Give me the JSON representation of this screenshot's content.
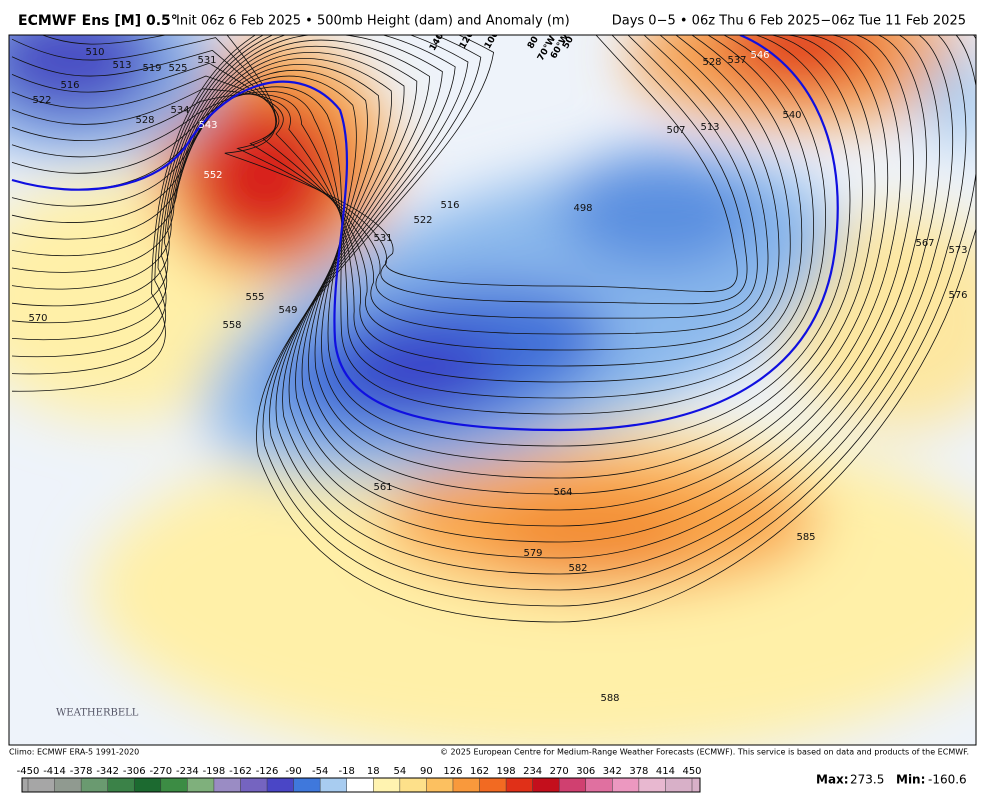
{
  "header": {
    "title": "ECMWF Ens [M] 0.5°",
    "subtitle": "Init 06z 6 Feb 2025 • 500mb Height (dam) and Anomaly (m)",
    "period": "Days 0−5 • 06z Thu 6 Feb 2025−06z Tue 11 Feb 2025"
  },
  "map": {
    "contour_labels": [
      "510",
      "516",
      "513",
      "519",
      "525",
      "531",
      "522",
      "528",
      "534",
      "543",
      "552",
      "555",
      "558",
      "549",
      "531",
      "522",
      "516",
      "546",
      "540",
      "528",
      "537",
      "507",
      "513",
      "498",
      "567",
      "573",
      "576",
      "570",
      "561",
      "564",
      "579",
      "582",
      "585",
      "588"
    ],
    "longitude_labels": [
      "140°W",
      "120°W",
      "100°W",
      "80°W",
      "70°W",
      "60°W",
      "50°W"
    ],
    "logo": "WEATHERBELL"
  },
  "footer": {
    "climo": "Climo: ECMWF ERA-5 1991-2020",
    "copyright": "© 2025 European Centre for Medium-Range Weather Forecasts (ECMWF). This service is based on data and products of the ECMWF.",
    "max_label": "Max:",
    "max": 273.5,
    "min_label": "Min:",
    "min": -160.6
  },
  "colorbar": {
    "ticks": [
      -450,
      -414,
      -378,
      -342,
      -306,
      -270,
      -234,
      -198,
      -162,
      -126,
      -90,
      -54,
      -18,
      18,
      54,
      90,
      126,
      162,
      198,
      234,
      270,
      306,
      342,
      378,
      414,
      450
    ],
    "colors": [
      "#a6a6a6",
      "#909a90",
      "#6a9a70",
      "#3b8248",
      "#1c6a30",
      "#3c8c44",
      "#7fb07c",
      "#9a8cc4",
      "#7564c0",
      "#4a46c6",
      "#3f78dc",
      "#a8ccf0",
      "#ffffff",
      "#fff3b0",
      "#fde08a",
      "#fcc060",
      "#f9993c",
      "#f26a22",
      "#e03018",
      "#c40f1c",
      "#d04070",
      "#e070a0",
      "#ec98c0",
      "#e8b8d0",
      "#d8b0c8"
    ]
  }
}
